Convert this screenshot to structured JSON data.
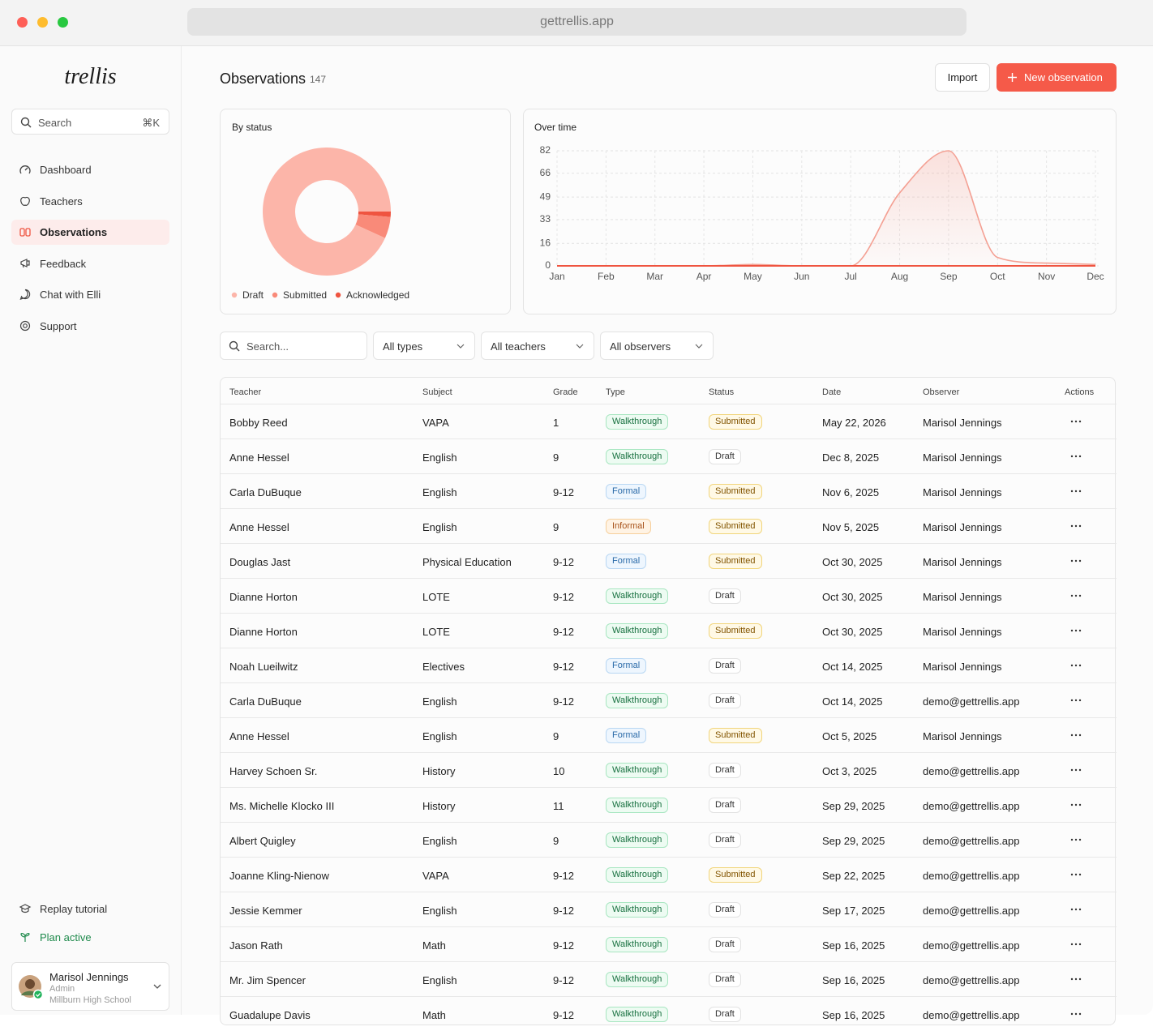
{
  "browser": {
    "url": "gettrellis.app"
  },
  "sidebar": {
    "logo": "trellis",
    "search": {
      "placeholder": "Search",
      "shortcut": "⌘K"
    },
    "nav": [
      "Dashboard",
      "Teachers",
      "Observations",
      "Feedback",
      "Chat with Elli",
      "Support"
    ],
    "tutorial": "Replay tutorial",
    "plan": "Plan active",
    "user": {
      "name": "Marisol Jennings",
      "role": "Admin",
      "school": "Millburn High School"
    }
  },
  "header": {
    "title": "Observations",
    "count": 147,
    "import": "Import",
    "new": "New observation"
  },
  "chart_data": [
    {
      "type": "pie",
      "title": "By status",
      "categories": [
        "Draft",
        "Submitted",
        "Acknowledged"
      ],
      "values": [
        137,
        8,
        2
      ],
      "colors": [
        "#fcb5a9",
        "#f98a79",
        "#ef5440"
      ]
    },
    {
      "type": "line",
      "title": "Over time",
      "categories": [
        "Jan",
        "Feb",
        "Mar",
        "Apr",
        "May",
        "Jun",
        "Jul",
        "Aug",
        "Sep",
        "Oct",
        "Nov",
        "Dec"
      ],
      "series": [
        {
          "color": "#f4a093",
          "values": [
            0,
            0,
            0,
            0,
            1,
            0,
            0,
            52,
            82,
            6,
            2,
            1
          ]
        },
        {
          "color": "#ef5440",
          "values": [
            0,
            0,
            0,
            0,
            0,
            0,
            0,
            0,
            0,
            0,
            0,
            0
          ]
        }
      ],
      "ylim": [
        0,
        82
      ],
      "yticks": [
        0,
        16,
        33,
        49,
        66,
        82
      ],
      "grid": true
    }
  ],
  "filters": {
    "search": "Search...",
    "types": "All types",
    "teachers": "All teachers",
    "observers": "All observers"
  },
  "table": {
    "columns": [
      "Teacher",
      "Subject",
      "Grade",
      "Type",
      "Status",
      "Date",
      "Observer",
      "Actions"
    ],
    "rows": [
      [
        "Bobby Reed",
        "VAPA",
        "1",
        "Walkthrough",
        "Submitted",
        "May 22, 2026",
        "Marisol Jennings"
      ],
      [
        "Anne Hessel",
        "English",
        "9",
        "Walkthrough",
        "Draft",
        "Dec 8, 2025",
        "Marisol Jennings"
      ],
      [
        "Carla DuBuque",
        "English",
        "9-12",
        "Formal",
        "Submitted",
        "Nov 6, 2025",
        "Marisol Jennings"
      ],
      [
        "Anne Hessel",
        "English",
        "9",
        "Informal",
        "Submitted",
        "Nov 5, 2025",
        "Marisol Jennings"
      ],
      [
        "Douglas Jast",
        "Physical Education",
        "9-12",
        "Formal",
        "Submitted",
        "Oct 30, 2025",
        "Marisol Jennings"
      ],
      [
        "Dianne Horton",
        "LOTE",
        "9-12",
        "Walkthrough",
        "Draft",
        "Oct 30, 2025",
        "Marisol Jennings"
      ],
      [
        "Dianne Horton",
        "LOTE",
        "9-12",
        "Walkthrough",
        "Submitted",
        "Oct 30, 2025",
        "Marisol Jennings"
      ],
      [
        "Noah Lueilwitz",
        "Electives",
        "9-12",
        "Formal",
        "Draft",
        "Oct 14, 2025",
        "Marisol Jennings"
      ],
      [
        "Carla DuBuque",
        "English",
        "9-12",
        "Walkthrough",
        "Draft",
        "Oct 14, 2025",
        "demo@gettrellis.app"
      ],
      [
        "Anne Hessel",
        "English",
        "9",
        "Formal",
        "Submitted",
        "Oct 5, 2025",
        "Marisol Jennings"
      ],
      [
        "Harvey Schoen Sr.",
        "History",
        "10",
        "Walkthrough",
        "Draft",
        "Oct 3, 2025",
        "demo@gettrellis.app"
      ],
      [
        "Ms. Michelle Klocko III",
        "History",
        "11",
        "Walkthrough",
        "Draft",
        "Sep 29, 2025",
        "demo@gettrellis.app"
      ],
      [
        "Albert Quigley",
        "English",
        "9",
        "Walkthrough",
        "Draft",
        "Sep 29, 2025",
        "demo@gettrellis.app"
      ],
      [
        "Joanne Kling-Nienow",
        "VAPA",
        "9-12",
        "Walkthrough",
        "Submitted",
        "Sep 22, 2025",
        "demo@gettrellis.app"
      ],
      [
        "Jessie Kemmer",
        "English",
        "9-12",
        "Walkthrough",
        "Draft",
        "Sep 17, 2025",
        "demo@gettrellis.app"
      ],
      [
        "Jason Rath",
        "Math",
        "9-12",
        "Walkthrough",
        "Draft",
        "Sep 16, 2025",
        "demo@gettrellis.app"
      ],
      [
        "Mr. Jim Spencer",
        "English",
        "9-12",
        "Walkthrough",
        "Draft",
        "Sep 16, 2025",
        "demo@gettrellis.app"
      ],
      [
        "Guadalupe Davis",
        "Math",
        "9-12",
        "Walkthrough",
        "Draft",
        "Sep 16, 2025",
        "demo@gettrellis.app"
      ]
    ]
  }
}
